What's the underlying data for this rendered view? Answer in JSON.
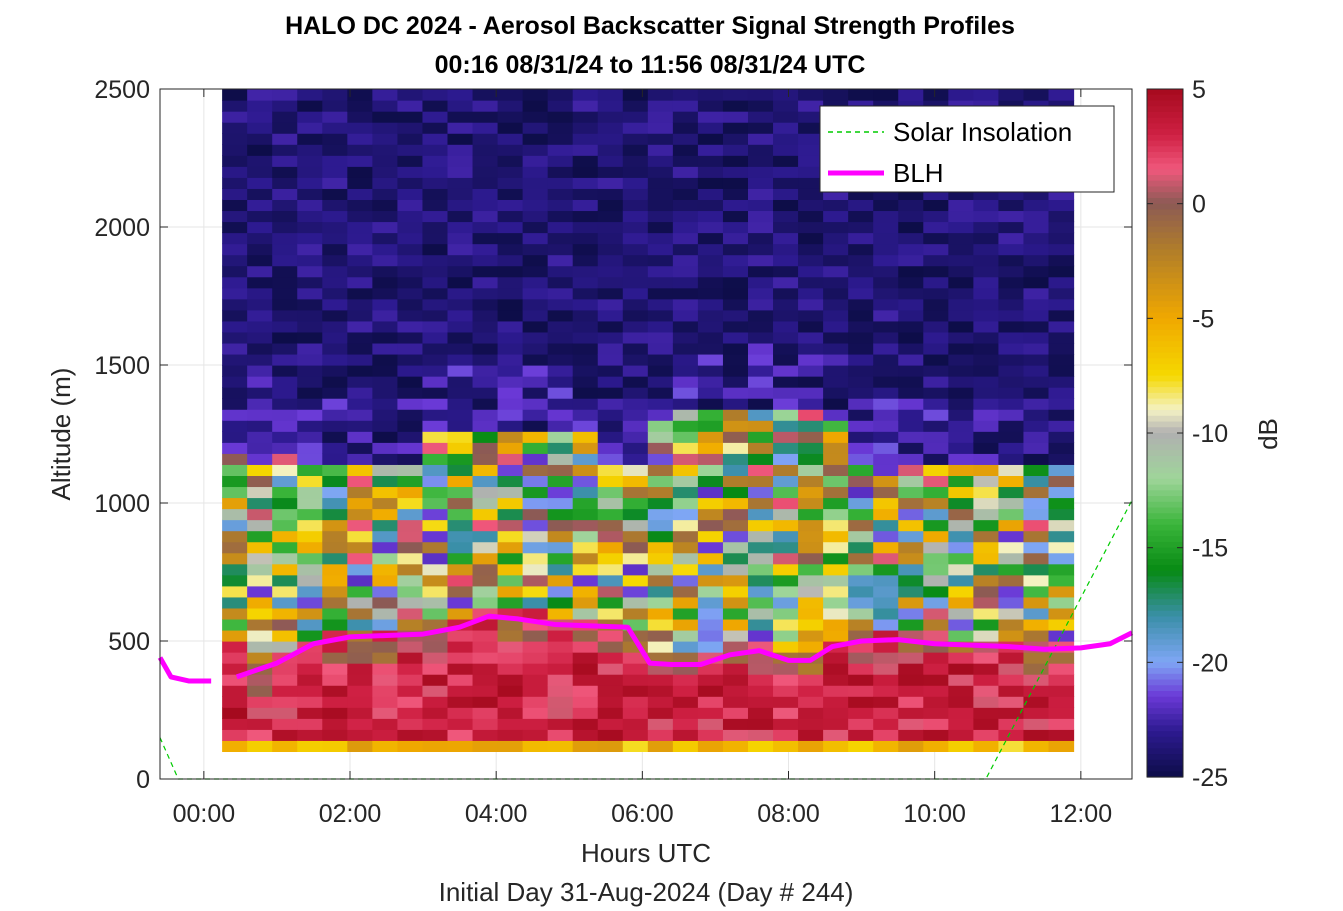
{
  "chart_data": {
    "type": "heatmap",
    "title": "HALO DC 2024 - Aerosol Backscatter Signal Strength Profiles",
    "subtitle": "00:16 08/31/24 to 11:56 08/31/24  UTC",
    "xlabel": "Hours UTC",
    "footer": "Initial Day 31-Aug-2024 (Day # 244)",
    "ylabel": "Altitude (m)",
    "colorbar_label": "dB",
    "xlim": [
      -0.6,
      12.7
    ],
    "ylim": [
      0,
      2500
    ],
    "x_ticks": [
      {
        "value": 0,
        "label": "00:00"
      },
      {
        "value": 2,
        "label": "02:00"
      },
      {
        "value": 4,
        "label": "04:00"
      },
      {
        "value": 6,
        "label": "06:00"
      },
      {
        "value": 8,
        "label": "08:00"
      },
      {
        "value": 10,
        "label": "10:00"
      },
      {
        "value": 12,
        "label": "12:00"
      }
    ],
    "y_ticks": [
      0,
      500,
      1000,
      1500,
      2000,
      2500
    ],
    "colorbar_ticks": [
      5,
      0,
      -5,
      -10,
      -15,
      -20,
      -25
    ],
    "clim": [
      -25,
      5
    ],
    "grid": true,
    "legend_position": "top-right",
    "heatmap": {
      "x_start": 0.25,
      "x_end": 11.9,
      "y_start": 100,
      "y_end": 2500,
      "note": "coarse approximation of gridded backscatter (dB)"
    },
    "series": [
      {
        "name": "Solar Insolation",
        "style": "dashed",
        "color": "#00cc00",
        "x": [
          -0.6,
          -0.35,
          10.7,
          12.7
        ],
        "y": [
          150,
          0,
          0,
          1010
        ]
      },
      {
        "name": "BLH",
        "style": "solid",
        "color": "#ff00ff",
        "segments": [
          {
            "x": [
              -0.6,
              -0.45,
              -0.2,
              0.1
            ],
            "y": [
              440,
              370,
              355,
              355
            ]
          },
          {
            "x": [
              0.45,
              1.0,
              1.5,
              2.0,
              2.5,
              3.0,
              3.5,
              3.9,
              4.3,
              4.8,
              5.3,
              5.8,
              6.1,
              6.4,
              6.8,
              7.2,
              7.6,
              8.0,
              8.3,
              8.6,
              9.0,
              9.5,
              10.0,
              10.5,
              11.0,
              11.5,
              12.0,
              12.4,
              12.7
            ],
            "y": [
              370,
              420,
              490,
              515,
              520,
              525,
              550,
              590,
              580,
              560,
              555,
              550,
              420,
              415,
              415,
              450,
              465,
              430,
              430,
              480,
              500,
              505,
              490,
              485,
              480,
              470,
              475,
              490,
              530
            ]
          }
        ]
      }
    ]
  }
}
